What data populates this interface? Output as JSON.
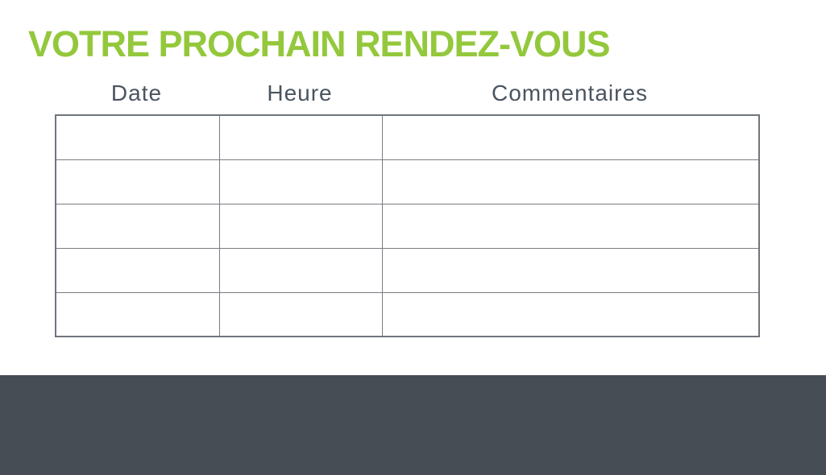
{
  "page": {
    "title": "VOTRE PROCHAIN RENDEZ-VOUS"
  },
  "colors": {
    "title_green": "#94c83c",
    "header_text": "#4a5460",
    "table_border": "#787d84",
    "table_outer_border": "#6f757d",
    "footer_background": "#474d55",
    "page_background": "#ffffff"
  },
  "table": {
    "headers": [
      "Date",
      "Heure",
      "Commentaires"
    ],
    "row_count": 5,
    "rows": [
      [
        "",
        "",
        ""
      ],
      [
        "",
        "",
        ""
      ],
      [
        "",
        "",
        ""
      ],
      [
        "",
        "",
        ""
      ],
      [
        "",
        "",
        ""
      ]
    ]
  }
}
